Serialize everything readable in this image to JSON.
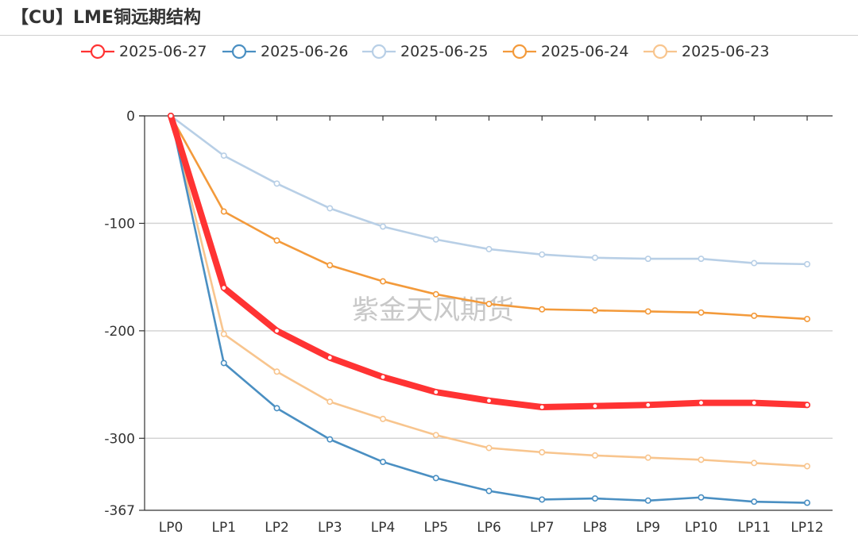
{
  "header": {
    "title": "【CU】LME铜远期结构"
  },
  "watermark": "紫金天风期货",
  "chart_data": {
    "type": "line",
    "title": "【CU】LME铜远期结构",
    "xlabel": "",
    "ylabel": "",
    "categories": [
      "LP0",
      "LP1",
      "LP2",
      "LP3",
      "LP4",
      "LP5",
      "LP6",
      "LP7",
      "LP8",
      "LP9",
      "LP10",
      "LP11",
      "LP12"
    ],
    "y_ticks": [
      0,
      -100,
      -200,
      -300,
      -367
    ],
    "ylim": [
      -367,
      0
    ],
    "grid": true,
    "legend_position": "top",
    "series": [
      {
        "name": "2025-06-27",
        "color": "#ff3333",
        "emphasis": true,
        "values": [
          0,
          -160,
          -200,
          -225,
          -243,
          -257,
          -265,
          -271,
          -270,
          -269,
          -267,
          -267,
          -269
        ]
      },
      {
        "name": "2025-06-26",
        "color": "#4a8fc2",
        "values": [
          0,
          -230,
          -272,
          -301,
          -322,
          -337,
          -349,
          -357,
          -356,
          -358,
          -355,
          -359,
          -360
        ]
      },
      {
        "name": "2025-06-25",
        "color": "#b8cfe6",
        "values": [
          0,
          -37,
          -63,
          -86,
          -103,
          -115,
          -124,
          -129,
          -132,
          -133,
          -133,
          -137,
          -138
        ]
      },
      {
        "name": "2025-06-24",
        "color": "#f39a3b",
        "values": [
          0,
          -89,
          -116,
          -139,
          -154,
          -166,
          -175,
          -180,
          -181,
          -182,
          -183,
          -186,
          -189
        ]
      },
      {
        "name": "2025-06-23",
        "color": "#f8c58e",
        "values": [
          0,
          -203,
          -238,
          -266,
          -282,
          -297,
          -309,
          -313,
          -316,
          -318,
          -320,
          -323,
          -326
        ]
      }
    ]
  }
}
